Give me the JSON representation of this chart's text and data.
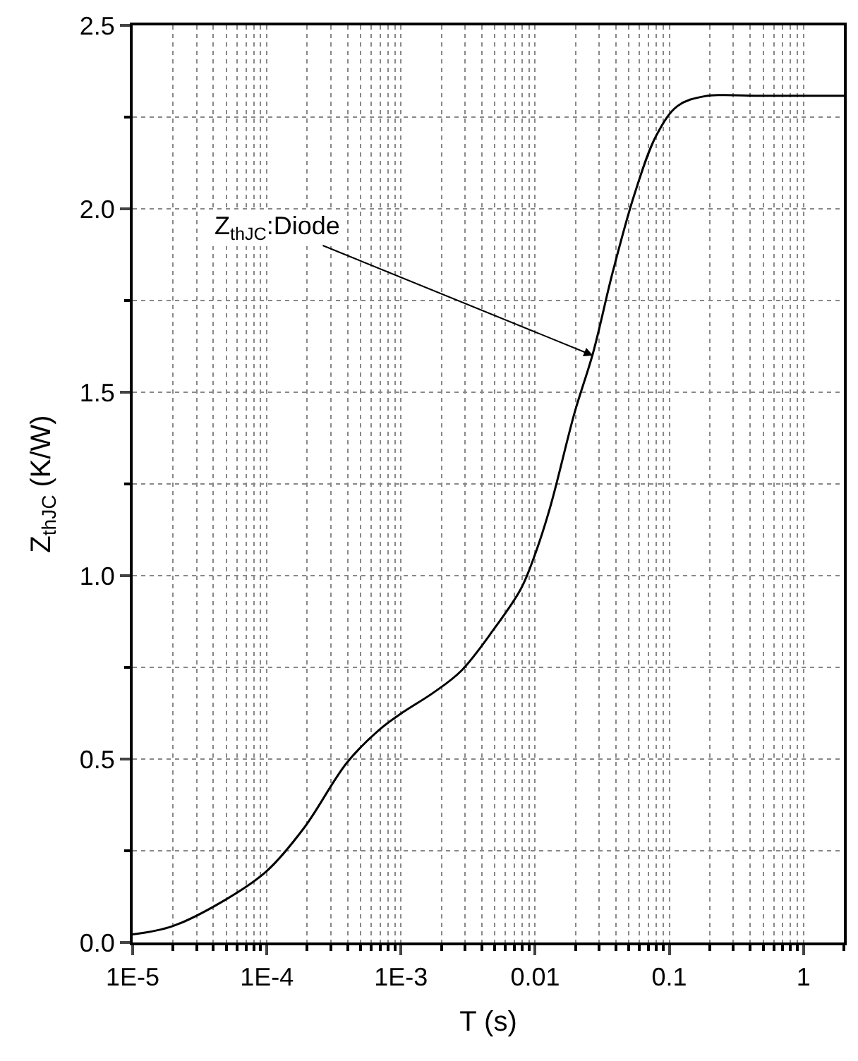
{
  "chart_data": {
    "type": "line",
    "xlabel": "T (s)",
    "ylabel": "Z$_{thJC}$ (K/W)",
    "x": [
      1e-05,
      2e-05,
      5.1e-05,
      0.0001,
      0.00019,
      0.000395,
      0.00069,
      0.001,
      0.00176,
      0.0028,
      0.0049,
      0.0078,
      0.0098,
      0.0129,
      0.0197,
      0.027,
      0.038,
      0.055,
      0.08,
      0.115,
      0.184,
      0.5,
      2
    ],
    "series": [
      {
        "color": "#000000",
        "values": [
          0.022,
          0.045,
          0.12,
          0.195,
          0.313,
          0.49,
          0.58,
          0.624,
          0.682,
          0.74,
          0.853,
          0.963,
          1.05,
          1.185,
          1.445,
          1.607,
          1.83,
          2.04,
          2.2,
          2.28,
          2.307,
          2.308,
          2.308
        ]
      }
    ],
    "log": "x",
    "xlim": [
      1e-05,
      2
    ],
    "ylim": [
      0,
      2.5
    ],
    "xticks": [
      {
        "value": 1e-05,
        "label": "1E-5"
      },
      {
        "value": 2e-05,
        "label": null
      },
      {
        "value": 3e-05,
        "label": null
      },
      {
        "value": 4e-05,
        "label": null
      },
      {
        "value": 5e-05,
        "label": null
      },
      {
        "value": 6e-05,
        "label": null
      },
      {
        "value": 7e-05,
        "label": null
      },
      {
        "value": 8e-05,
        "label": null
      },
      {
        "value": 9e-05,
        "label": null
      },
      {
        "value": 0.0001,
        "label": "1E-4"
      },
      {
        "value": 0.0002,
        "label": null
      },
      {
        "value": 0.0003,
        "label": null
      },
      {
        "value": 0.0004,
        "label": null
      },
      {
        "value": 0.0005,
        "label": null
      },
      {
        "value": 0.0006,
        "label": null
      },
      {
        "value": 0.0007,
        "label": null
      },
      {
        "value": 0.0008,
        "label": null
      },
      {
        "value": 0.0009,
        "label": null
      },
      {
        "value": 0.001,
        "label": "1E-3"
      },
      {
        "value": 0.002,
        "label": null
      },
      {
        "value": 0.003,
        "label": null
      },
      {
        "value": 0.004,
        "label": null
      },
      {
        "value": 0.005,
        "label": null
      },
      {
        "value": 0.006,
        "label": null
      },
      {
        "value": 0.007,
        "label": null
      },
      {
        "value": 0.008,
        "label": null
      },
      {
        "value": 0.009,
        "label": null
      },
      0.01,
      {
        "value": 0.02,
        "label": null
      },
      {
        "value": 0.03,
        "label": null
      },
      {
        "value": 0.04,
        "label": null
      },
      {
        "value": 0.05,
        "label": null
      },
      {
        "value": 0.06,
        "label": null
      },
      {
        "value": 0.07,
        "label": null
      },
      {
        "value": 0.08,
        "label": null
      },
      {
        "value": 0.09,
        "label": null
      },
      0.1,
      {
        "value": 0.2,
        "label": null
      },
      {
        "value": 0.3,
        "label": null
      },
      {
        "value": 0.4,
        "label": null
      },
      {
        "value": 0.5,
        "label": null
      },
      {
        "value": 0.6,
        "label": null
      },
      {
        "value": 0.7,
        "label": null
      },
      {
        "value": 0.8,
        "label": null
      },
      {
        "value": 0.9,
        "label": null
      },
      1,
      {
        "value": 2,
        "label": null
      }
    ],
    "yticks": [
      {
        "value": 0,
        "label": "0.0"
      },
      {
        "value": 0.25,
        "label": null
      },
      {
        "value": 0.5,
        "label": "0.5"
      },
      {
        "value": 0.75,
        "label": null
      },
      {
        "value": 1,
        "label": "1.0"
      },
      {
        "value": 1.25,
        "label": null
      },
      {
        "value": 1.5,
        "label": "1.5"
      },
      {
        "value": 1.75,
        "label": null
      },
      {
        "value": 2,
        "label": "2.0"
      },
      {
        "value": 2.25,
        "label": null
      },
      {
        "value": 2.5,
        "label": "2.5"
      }
    ],
    "grid": true,
    "marker": "none",
    "line_style": "solid",
    "annotations": [
      {
        "text": "Z$_{thJC}$:Diode",
        "x": 0.027,
        "y": 1.6
      }
    ]
  }
}
